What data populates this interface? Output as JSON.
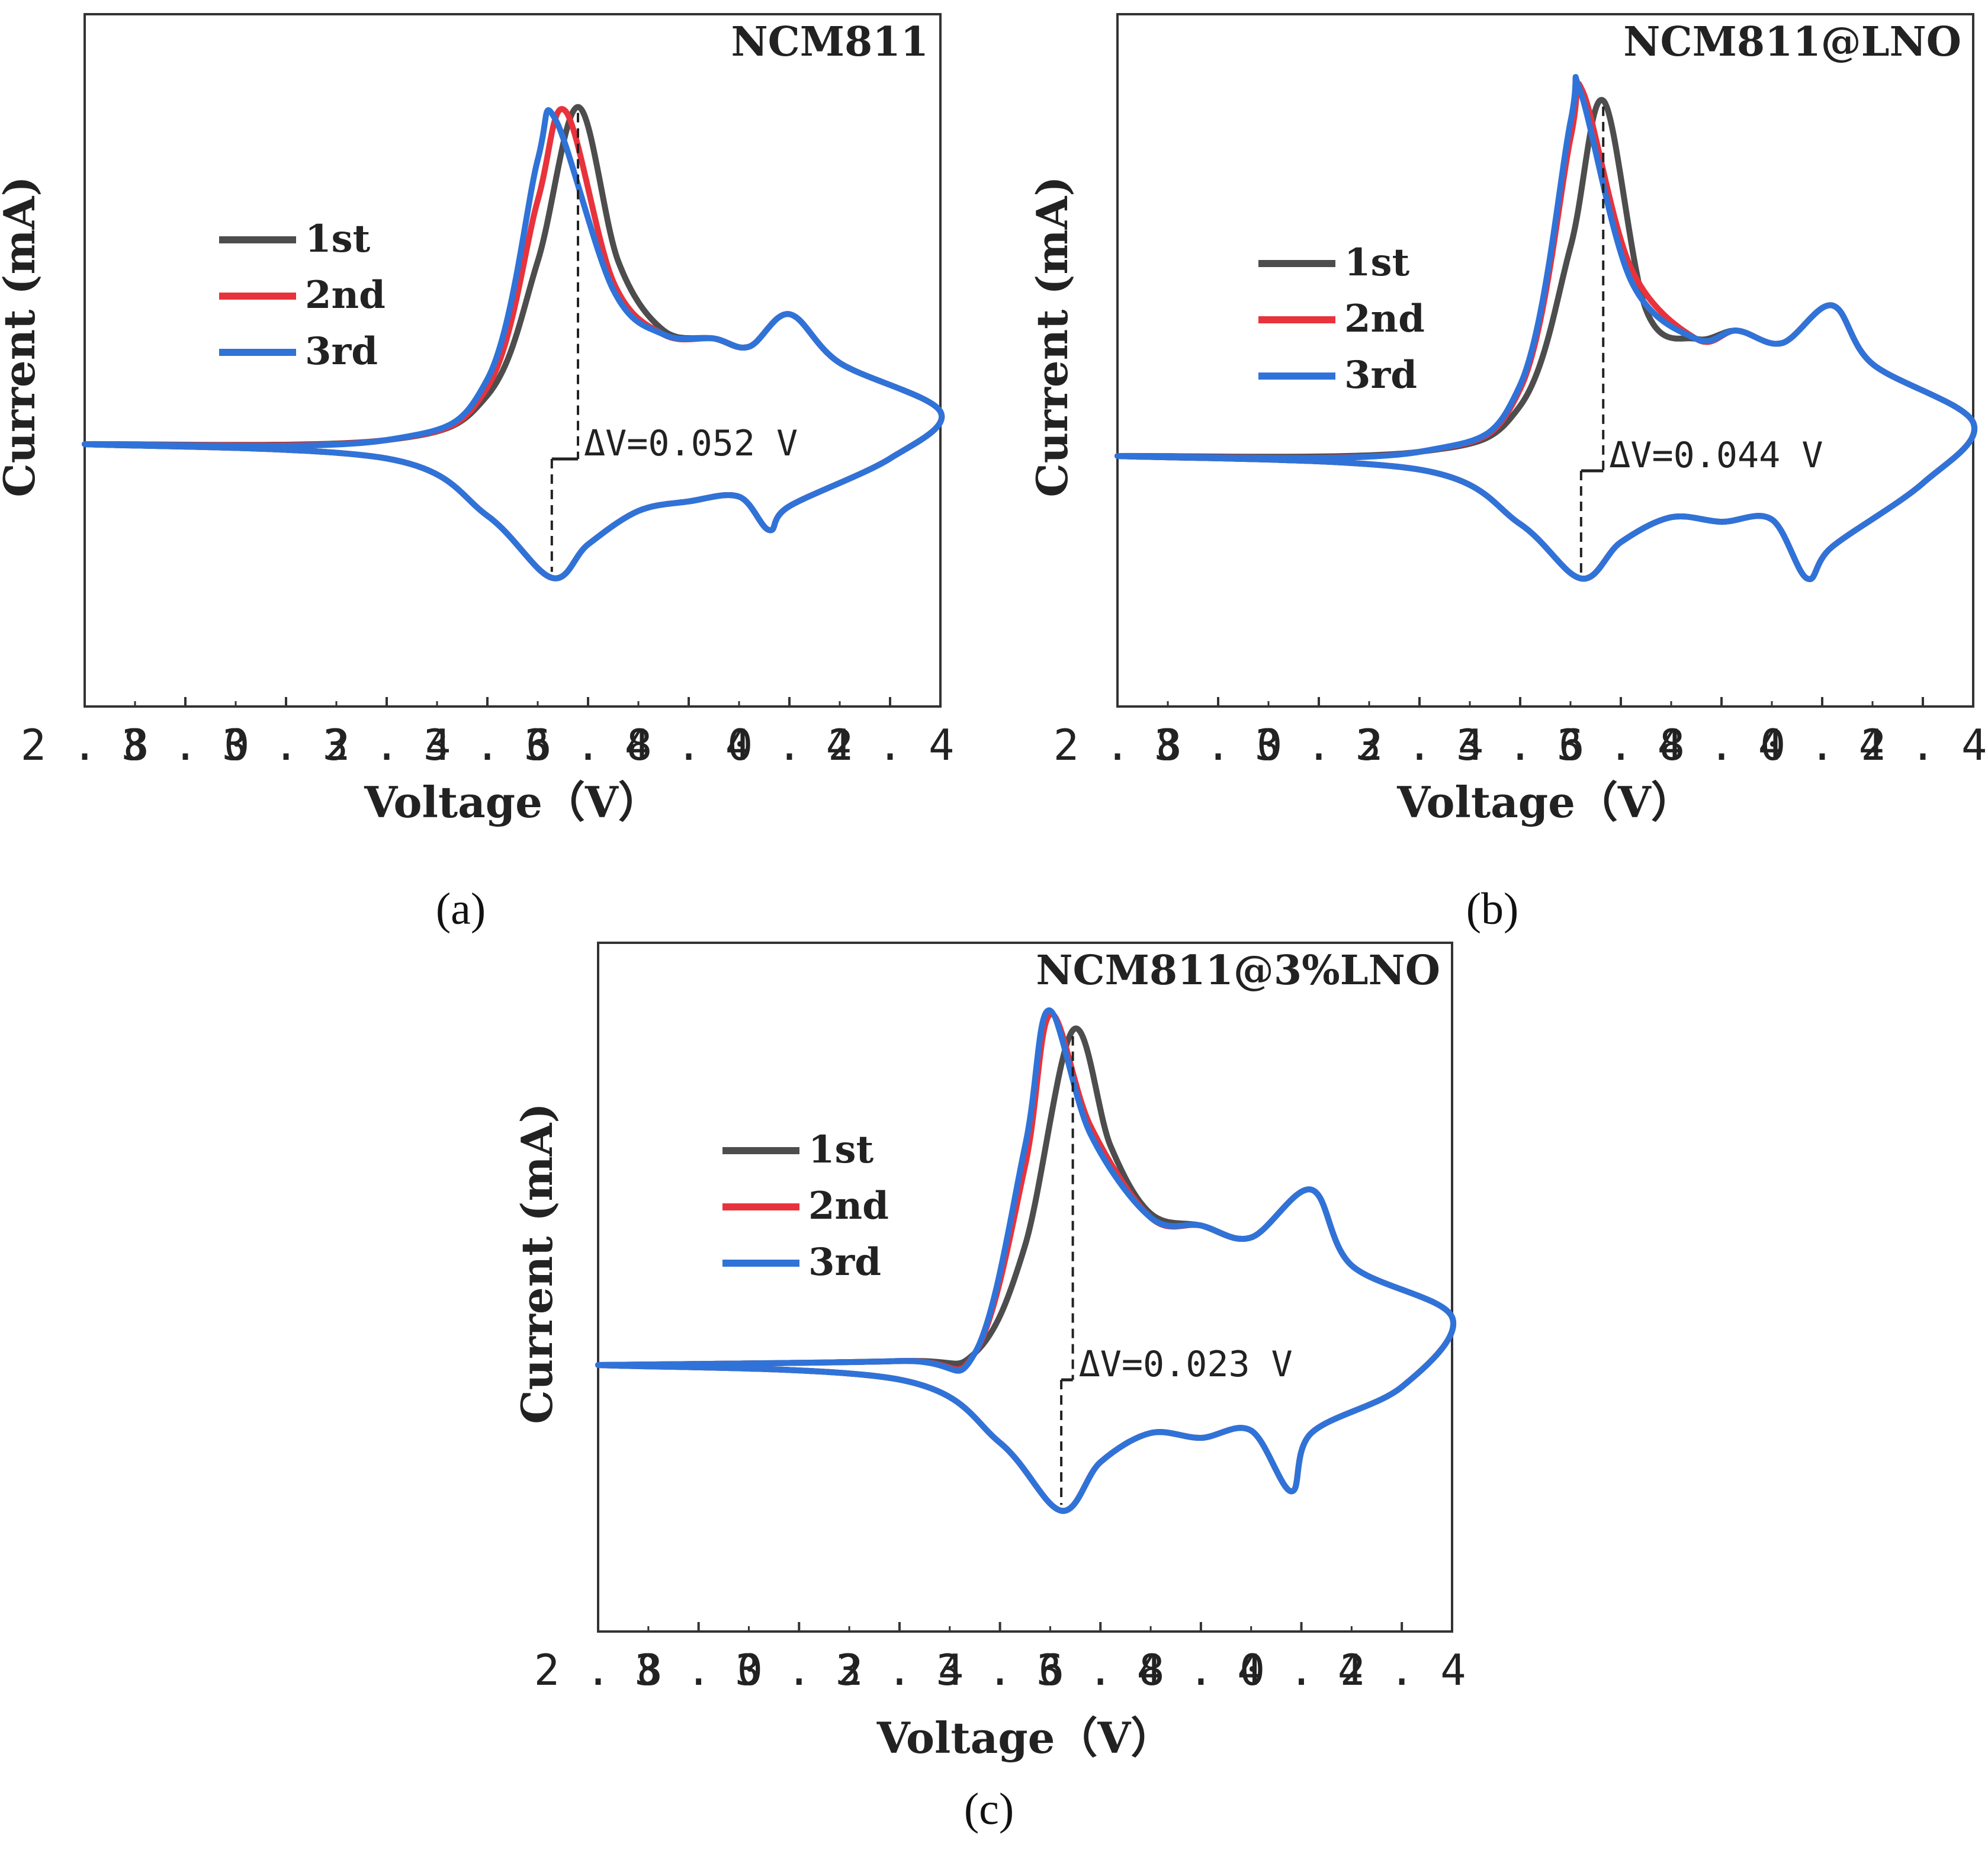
{
  "figure": {
    "panel_labels": [
      "(a)",
      "(b)",
      "(c)"
    ]
  },
  "chart_data": [
    {
      "type": "line",
      "panel": "(a)",
      "title": "NCM811",
      "xlabel": "Voltage（V）",
      "ylabel": "Current (mA)",
      "xlim": [
        2.8,
        4.5
      ],
      "ylim": [
        -1.0,
        1.0
      ],
      "x_ticks": [
        "2.8",
        "3.0",
        "3.2",
        "3.4",
        "3.6",
        "3.8",
        "4.0",
        "4.2",
        "4.4"
      ],
      "y_ticks_shown": false,
      "legend": {
        "position": "upper-left",
        "entries": [
          "1st",
          "2nd",
          "3rd"
        ]
      },
      "annotation": {
        "text": "ΔV=0.052 V",
        "anodic_peak_v": 3.78,
        "cathodic_peak_v": 3.728
      },
      "series": [
        {
          "name": "1st",
          "color": "#4d4d4d",
          "anodic_peak": [
            3.78,
            0.83
          ],
          "cathodic_peak": [
            3.728,
            -0.56
          ],
          "approx_points": [
            [
              2.8,
              0.0
            ],
            [
              3.4,
              0.01
            ],
            [
              3.6,
              0.12
            ],
            [
              3.7,
              0.45
            ],
            [
              3.78,
              0.83
            ],
            [
              3.86,
              0.45
            ],
            [
              3.95,
              0.28
            ],
            [
              4.05,
              0.26
            ],
            [
              4.12,
              0.24
            ],
            [
              4.2,
              0.32
            ],
            [
              4.3,
              0.2
            ],
            [
              4.5,
              0.08
            ],
            [
              4.4,
              -0.06
            ],
            [
              4.2,
              -0.26
            ],
            [
              4.16,
              -0.36
            ],
            [
              4.1,
              -0.22
            ],
            [
              4.0,
              -0.24
            ],
            [
              3.9,
              -0.28
            ],
            [
              3.8,
              -0.42
            ],
            [
              3.728,
              -0.56
            ],
            [
              3.6,
              -0.3
            ],
            [
              3.4,
              -0.06
            ],
            [
              2.8,
              0.0
            ]
          ]
        },
        {
          "name": "2nd",
          "color": "#e8333c",
          "anodic_peak": [
            3.755,
            0.82
          ],
          "cathodic_peak": [
            3.728,
            -0.56
          ],
          "approx_points": [
            [
              2.8,
              0.0
            ],
            [
              3.4,
              0.01
            ],
            [
              3.6,
              0.14
            ],
            [
              3.7,
              0.6
            ],
            [
              3.755,
              0.82
            ],
            [
              3.85,
              0.4
            ],
            [
              3.95,
              0.27
            ],
            [
              4.05,
              0.26
            ],
            [
              4.12,
              0.24
            ],
            [
              4.2,
              0.32
            ],
            [
              4.3,
              0.2
            ],
            [
              4.5,
              0.08
            ],
            [
              4.4,
              -0.06
            ],
            [
              4.2,
              -0.26
            ],
            [
              4.16,
              -0.36
            ],
            [
              4.1,
              -0.22
            ],
            [
              4.0,
              -0.24
            ],
            [
              3.9,
              -0.28
            ],
            [
              3.8,
              -0.42
            ],
            [
              3.728,
              -0.56
            ],
            [
              3.6,
              -0.3
            ],
            [
              3.4,
              -0.06
            ],
            [
              2.8,
              0.0
            ]
          ]
        },
        {
          "name": "3rd",
          "color": "#2f73d9",
          "anodic_peak": [
            3.735,
            0.8
          ],
          "cathodic_peak": [
            3.728,
            -0.56
          ],
          "approx_points": [
            [
              2.8,
              0.0
            ],
            [
              3.4,
              0.01
            ],
            [
              3.6,
              0.16
            ],
            [
              3.7,
              0.7
            ],
            [
              3.735,
              0.8
            ],
            [
              3.85,
              0.38
            ],
            [
              3.95,
              0.27
            ],
            [
              4.05,
              0.26
            ],
            [
              4.12,
              0.24
            ],
            [
              4.2,
              0.32
            ],
            [
              4.3,
              0.2
            ],
            [
              4.5,
              0.08
            ],
            [
              4.4,
              -0.06
            ],
            [
              4.2,
              -0.26
            ],
            [
              4.16,
              -0.36
            ],
            [
              4.1,
              -0.22
            ],
            [
              4.0,
              -0.24
            ],
            [
              3.9,
              -0.28
            ],
            [
              3.8,
              -0.42
            ],
            [
              3.728,
              -0.56
            ],
            [
              3.6,
              -0.3
            ],
            [
              3.4,
              -0.06
            ],
            [
              2.8,
              0.0
            ]
          ]
        }
      ]
    },
    {
      "type": "line",
      "panel": "(b)",
      "title": "NCM811@LNO",
      "xlabel": "Voltage（V）",
      "ylabel": "Current (mA)",
      "xlim": [
        2.8,
        4.5
      ],
      "ylim": [
        -1.0,
        1.0
      ],
      "x_ticks": [
        "2.8",
        "3.0",
        "3.2",
        "3.4",
        "3.6",
        "3.8",
        "4.0",
        "4.2",
        "4.4"
      ],
      "y_ticks_shown": false,
      "legend": {
        "position": "upper-left",
        "entries": [
          "1st",
          "2nd",
          "3rd"
        ]
      },
      "annotation": {
        "text": "ΔV=0.044 V",
        "anodic_peak_v": 3.765,
        "cathodic_peak_v": 3.721
      },
      "series": [
        {
          "name": "1st",
          "color": "#4d4d4d",
          "anodic_peak": [
            3.765,
            0.85
          ],
          "cathodic_peak": [
            3.721,
            -0.54
          ],
          "approx_points": [
            [
              2.8,
              0.0
            ],
            [
              3.4,
              0.01
            ],
            [
              3.6,
              0.12
            ],
            [
              3.7,
              0.5
            ],
            [
              3.765,
              0.85
            ],
            [
              3.85,
              0.35
            ],
            [
              3.95,
              0.28
            ],
            [
              4.03,
              0.3
            ],
            [
              4.12,
              0.27
            ],
            [
              4.22,
              0.36
            ],
            [
              4.3,
              0.22
            ],
            [
              4.5,
              0.08
            ],
            [
              4.4,
              -0.12
            ],
            [
              4.22,
              -0.4
            ],
            [
              4.17,
              -0.54
            ],
            [
              4.1,
              -0.28
            ],
            [
              4.0,
              -0.29
            ],
            [
              3.9,
              -0.27
            ],
            [
              3.8,
              -0.38
            ],
            [
              3.721,
              -0.54
            ],
            [
              3.6,
              -0.3
            ],
            [
              3.4,
              -0.06
            ],
            [
              2.8,
              0.0
            ]
          ]
        },
        {
          "name": "2nd",
          "color": "#e8333c",
          "anodic_peak": [
            3.725,
            0.87
          ],
          "cathodic_peak": [
            3.721,
            -0.54
          ],
          "approx_points": [
            [
              2.8,
              0.0
            ],
            [
              3.4,
              0.01
            ],
            [
              3.6,
              0.16
            ],
            [
              3.7,
              0.76
            ],
            [
              3.725,
              0.87
            ],
            [
              3.82,
              0.45
            ],
            [
              3.95,
              0.28
            ],
            [
              4.03,
              0.3
            ],
            [
              4.12,
              0.27
            ],
            [
              4.22,
              0.36
            ],
            [
              4.3,
              0.22
            ],
            [
              4.5,
              0.08
            ],
            [
              4.4,
              -0.12
            ],
            [
              4.22,
              -0.4
            ],
            [
              4.17,
              -0.54
            ],
            [
              4.1,
              -0.28
            ],
            [
              4.0,
              -0.29
            ],
            [
              3.9,
              -0.27
            ],
            [
              3.8,
              -0.38
            ],
            [
              3.721,
              -0.54
            ],
            [
              3.6,
              -0.3
            ],
            [
              3.4,
              -0.06
            ],
            [
              2.8,
              0.0
            ]
          ]
        },
        {
          "name": "3rd",
          "color": "#2f73d9",
          "anodic_peak": [
            3.72,
            0.87
          ],
          "cathodic_peak": [
            3.721,
            -0.54
          ],
          "approx_points": [
            [
              2.8,
              0.0
            ],
            [
              3.4,
              0.01
            ],
            [
              3.6,
              0.17
            ],
            [
              3.7,
              0.8
            ],
            [
              3.72,
              0.87
            ],
            [
              3.82,
              0.42
            ],
            [
              3.95,
              0.28
            ],
            [
              4.03,
              0.3
            ],
            [
              4.12,
              0.27
            ],
            [
              4.22,
              0.36
            ],
            [
              4.3,
              0.22
            ],
            [
              4.5,
              0.08
            ],
            [
              4.4,
              -0.12
            ],
            [
              4.22,
              -0.4
            ],
            [
              4.17,
              -0.54
            ],
            [
              4.1,
              -0.28
            ],
            [
              4.0,
              -0.29
            ],
            [
              3.9,
              -0.27
            ],
            [
              3.8,
              -0.38
            ],
            [
              3.721,
              -0.54
            ],
            [
              3.6,
              -0.3
            ],
            [
              3.4,
              -0.06
            ],
            [
              2.8,
              0.0
            ]
          ]
        }
      ]
    },
    {
      "type": "line",
      "panel": "(c)",
      "title": "NCM811@3%LNO",
      "xlabel": "Voltage（V）",
      "ylabel": "Current (mA)",
      "xlim": [
        2.8,
        4.5
      ],
      "ylim": [
        -1.0,
        1.0
      ],
      "x_ticks": [
        "2.8",
        "3.0",
        "3.2",
        "3.4",
        "3.6",
        "3.8",
        "4.0",
        "4.2",
        "4.4"
      ],
      "y_ticks_shown": false,
      "legend": {
        "position": "upper-left",
        "entries": [
          "1st",
          "2nd",
          "3rd"
        ]
      },
      "annotation": {
        "text": "ΔV=0.023 V",
        "anodic_peak_v": 3.745,
        "cathodic_peak_v": 3.722
      },
      "series": [
        {
          "name": "1st",
          "color": "#4d4d4d",
          "anodic_peak": [
            3.745,
            0.84
          ],
          "cathodic_peak": [
            3.722,
            -0.6
          ],
          "approx_points": [
            [
              2.8,
              0.0
            ],
            [
              3.4,
              0.01
            ],
            [
              3.55,
              0.03
            ],
            [
              3.65,
              0.3
            ],
            [
              3.745,
              0.84
            ],
            [
              3.82,
              0.55
            ],
            [
              3.9,
              0.38
            ],
            [
              4.0,
              0.35
            ],
            [
              4.1,
              0.32
            ],
            [
              4.22,
              0.44
            ],
            [
              4.3,
              0.25
            ],
            [
              4.5,
              0.12
            ],
            [
              4.4,
              -0.09
            ],
            [
              4.22,
              -0.28
            ],
            [
              4.18,
              -0.52
            ],
            [
              4.1,
              -0.27
            ],
            [
              4.0,
              -0.3
            ],
            [
              3.9,
              -0.28
            ],
            [
              3.8,
              -0.4
            ],
            [
              3.722,
              -0.6
            ],
            [
              3.6,
              -0.32
            ],
            [
              3.4,
              -0.06
            ],
            [
              2.8,
              0.0
            ]
          ]
        },
        {
          "name": "2nd",
          "color": "#e8333c",
          "anodic_peak": [
            3.7,
            0.88
          ],
          "cathodic_peak": [
            3.722,
            -0.6
          ],
          "approx_points": [
            [
              2.8,
              0.0
            ],
            [
              3.4,
              0.01
            ],
            [
              3.55,
              0.03
            ],
            [
              3.65,
              0.5
            ],
            [
              3.7,
              0.88
            ],
            [
              3.78,
              0.6
            ],
            [
              3.9,
              0.37
            ],
            [
              4.0,
              0.35
            ],
            [
              4.1,
              0.32
            ],
            [
              4.22,
              0.44
            ],
            [
              4.3,
              0.25
            ],
            [
              4.5,
              0.12
            ],
            [
              4.4,
              -0.09
            ],
            [
              4.22,
              -0.28
            ],
            [
              4.18,
              -0.52
            ],
            [
              4.1,
              -0.27
            ],
            [
              4.0,
              -0.3
            ],
            [
              3.9,
              -0.28
            ],
            [
              3.8,
              -0.4
            ],
            [
              3.722,
              -0.6
            ],
            [
              3.6,
              -0.32
            ],
            [
              3.4,
              -0.06
            ],
            [
              2.8,
              0.0
            ]
          ]
        },
        {
          "name": "3rd",
          "color": "#2f73d9",
          "anodic_peak": [
            3.697,
            0.89
          ],
          "cathodic_peak": [
            3.722,
            -0.6
          ],
          "approx_points": [
            [
              2.8,
              0.0
            ],
            [
              3.4,
              0.01
            ],
            [
              3.55,
              0.03
            ],
            [
              3.65,
              0.55
            ],
            [
              3.697,
              0.89
            ],
            [
              3.78,
              0.58
            ],
            [
              3.9,
              0.37
            ],
            [
              4.0,
              0.35
            ],
            [
              4.1,
              0.32
            ],
            [
              4.22,
              0.44
            ],
            [
              4.3,
              0.25
            ],
            [
              4.5,
              0.12
            ],
            [
              4.4,
              -0.09
            ],
            [
              4.22,
              -0.28
            ],
            [
              4.18,
              -0.52
            ],
            [
              4.1,
              -0.27
            ],
            [
              4.0,
              -0.3
            ],
            [
              3.9,
              -0.28
            ],
            [
              3.8,
              -0.4
            ],
            [
              3.722,
              -0.6
            ],
            [
              3.6,
              -0.32
            ],
            [
              3.4,
              -0.06
            ],
            [
              2.8,
              0.0
            ]
          ]
        }
      ]
    }
  ]
}
